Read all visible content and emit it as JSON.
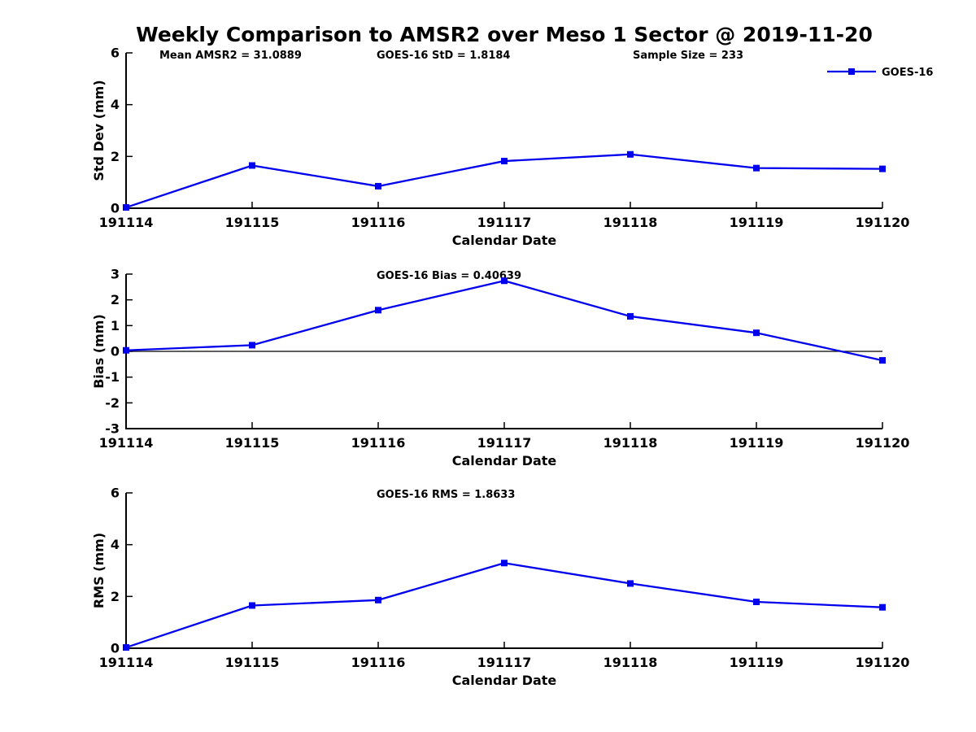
{
  "title": "Weekly Comparison to AMSR2 over Meso 1 Sector @ 2019-11-20",
  "colors": {
    "line": "#0000EE",
    "text": "#000000",
    "axis": "#000000"
  },
  "legend": {
    "label": "GOES-16"
  },
  "chart_data": [
    {
      "type": "line",
      "categories": [
        "191114",
        "191115",
        "191116",
        "191117",
        "191118",
        "191119",
        "191120"
      ],
      "series": [
        {
          "name": "GOES-16",
          "color": "#0000EE",
          "marker": "square",
          "values": [
            0.03,
            1.65,
            0.85,
            1.82,
            2.08,
            1.55,
            1.52
          ]
        }
      ],
      "xlabel": "Calendar Date",
      "ylabel": "Std Dev (mm)",
      "ylim": [
        0,
        6
      ],
      "yticks": [
        0,
        2,
        4,
        6
      ],
      "grid": false,
      "legend_position": "top-right",
      "annotations": [
        "Mean AMSR2 = 31.0889",
        "GOES-16 StD = 1.8184",
        "Sample Size = 233"
      ]
    },
    {
      "type": "line",
      "categories": [
        "191114",
        "191115",
        "191116",
        "191117",
        "191118",
        "191119",
        "191120"
      ],
      "series": [
        {
          "name": "GOES-16",
          "color": "#0000EE",
          "marker": "square",
          "values": [
            0.04,
            0.24,
            1.6,
            2.74,
            1.36,
            0.72,
            -0.35
          ]
        }
      ],
      "xlabel": "Calendar Date",
      "ylabel": "Bias (mm)",
      "ylim": [
        -3,
        3
      ],
      "yticks": [
        -3,
        -2,
        -1,
        0,
        1,
        2,
        3
      ],
      "zero_line": true,
      "grid": false,
      "annotations": [
        "GOES-16 Bias  = 0.40639"
      ]
    },
    {
      "type": "line",
      "categories": [
        "191114",
        "191115",
        "191116",
        "191117",
        "191118",
        "191119",
        "191120"
      ],
      "series": [
        {
          "name": "GOES-16",
          "color": "#0000EE",
          "marker": "square",
          "values": [
            0.03,
            1.65,
            1.86,
            3.29,
            2.5,
            1.79,
            1.58
          ]
        }
      ],
      "xlabel": "Calendar Date",
      "ylabel": "RMS (mm)",
      "ylim": [
        0,
        6
      ],
      "yticks": [
        0,
        2,
        4,
        6
      ],
      "grid": false,
      "annotations": [
        "GOES-16 RMS = 1.8633"
      ]
    }
  ]
}
